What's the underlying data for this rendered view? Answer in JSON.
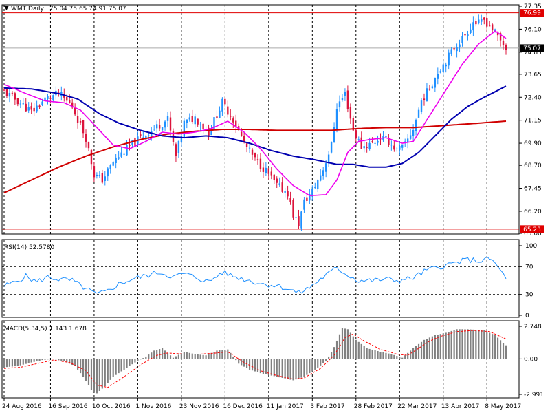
{
  "header": {
    "symbol": "WMT,Daily",
    "ohlc": "75.04 75.65 74.91 75.07"
  },
  "price_panel": {
    "ticks": [
      "77.35",
      "76.10",
      "74.85",
      "73.65",
      "72.40",
      "71.15",
      "69.90",
      "68.70",
      "67.45",
      "66.20",
      "65.00"
    ],
    "hline_high": "76.99",
    "hline_low": "65.23",
    "current": "75.07",
    "colors": {
      "bull": "#1e90ff",
      "bear": "#dc143c",
      "ma_fast": "#ee00ee",
      "ma_mid": "#0000b0",
      "ma_slow": "#d00000",
      "hline": "#e00000",
      "last": "#aaaaaa"
    }
  },
  "rsi_panel": {
    "title": "RSI(14) 52.5780",
    "ticks": [
      "100",
      "70",
      "30",
      "0"
    ],
    "line_color": "#1e90ff"
  },
  "macd_panel": {
    "title": "MACD(5,34,5) 1.143 1.678",
    "ticks": [
      "2.748",
      "0.00",
      "-2.991"
    ],
    "hist_color": "#808080",
    "signal_color": "#ff0000"
  },
  "x_axis": {
    "labels": [
      "24 Aug 2016",
      "16 Sep 2016",
      "10 Oct 2016",
      "1 Nov 2016",
      "23 Nov 2016",
      "16 Dec 2016",
      "11 Jan 2017",
      "3 Feb 2017",
      "28 Feb 2017",
      "22 Mar 2017",
      "13 Apr 2017",
      "8 May 2017"
    ]
  },
  "chart_data": {
    "type": "candlestick",
    "n_bars": 185,
    "ylim": [
      65.0,
      77.35
    ],
    "close_path": [
      [
        0,
        72.7
      ],
      [
        5,
        72.2
      ],
      [
        10,
        71.6
      ],
      [
        15,
        72.3
      ],
      [
        20,
        72.6
      ],
      [
        25,
        71.9
      ],
      [
        30,
        70.2
      ],
      [
        33,
        68.2
      ],
      [
        36,
        67.9
      ],
      [
        40,
        68.9
      ],
      [
        45,
        69.6
      ],
      [
        50,
        70.2
      ],
      [
        55,
        70.7
      ],
      [
        60,
        71.2
      ],
      [
        63,
        69.2
      ],
      [
        66,
        71.0
      ],
      [
        70,
        71.3
      ],
      [
        75,
        70.5
      ],
      [
        80,
        72.1
      ],
      [
        84,
        71.2
      ],
      [
        88,
        69.9
      ],
      [
        92,
        69.0
      ],
      [
        96,
        68.4
      ],
      [
        100,
        67.6
      ],
      [
        104,
        67.2
      ],
      [
        106,
        66.0
      ],
      [
        108,
        65.5
      ],
      [
        110,
        66.7
      ],
      [
        113,
        67.3
      ],
      [
        117,
        68.5
      ],
      [
        120,
        69.8
      ],
      [
        122,
        71.9
      ],
      [
        125,
        72.6
      ],
      [
        128,
        70.6
      ],
      [
        131,
        69.7
      ],
      [
        135,
        69.9
      ],
      [
        138,
        70.2
      ],
      [
        141,
        70.0
      ],
      [
        144,
        69.5
      ],
      [
        147,
        69.8
      ],
      [
        150,
        70.7
      ],
      [
        153,
        72.2
      ],
      [
        156,
        72.9
      ],
      [
        159,
        73.8
      ],
      [
        162,
        74.4
      ],
      [
        165,
        75.1
      ],
      [
        168,
        75.6
      ],
      [
        170,
        76.0
      ],
      [
        172,
        76.5
      ],
      [
        174,
        76.4
      ],
      [
        176,
        76.6
      ],
      [
        178,
        76.3
      ],
      [
        180,
        75.9
      ],
      [
        182,
        75.5
      ],
      [
        184,
        75.07
      ]
    ],
    "ma_fast": [
      [
        0,
        73.1
      ],
      [
        8,
        72.6
      ],
      [
        15,
        72.2
      ],
      [
        22,
        72.1
      ],
      [
        28,
        71.7
      ],
      [
        35,
        70.6
      ],
      [
        40,
        69.8
      ],
      [
        46,
        69.6
      ],
      [
        52,
        70.0
      ],
      [
        58,
        70.5
      ],
      [
        64,
        70.4
      ],
      [
        70,
        70.5
      ],
      [
        76,
        70.7
      ],
      [
        82,
        71.1
      ],
      [
        88,
        70.5
      ],
      [
        94,
        69.6
      ],
      [
        100,
        68.5
      ],
      [
        106,
        67.6
      ],
      [
        112,
        67.05
      ],
      [
        118,
        67.1
      ],
      [
        122,
        67.9
      ],
      [
        126,
        69.4
      ],
      [
        130,
        70.0
      ],
      [
        134,
        70.1
      ],
      [
        140,
        70.2
      ],
      [
        146,
        69.9
      ],
      [
        150,
        70.0
      ],
      [
        156,
        71.4
      ],
      [
        162,
        72.8
      ],
      [
        168,
        74.2
      ],
      [
        174,
        75.3
      ],
      [
        180,
        76.0
      ],
      [
        184,
        75.6
      ]
    ],
    "ma_mid": [
      [
        0,
        72.9
      ],
      [
        10,
        72.85
      ],
      [
        20,
        72.6
      ],
      [
        27,
        72.3
      ],
      [
        35,
        71.5
      ],
      [
        42,
        71.0
      ],
      [
        50,
        70.6
      ],
      [
        58,
        70.3
      ],
      [
        66,
        70.2
      ],
      [
        74,
        70.3
      ],
      [
        82,
        70.2
      ],
      [
        90,
        69.9
      ],
      [
        98,
        69.5
      ],
      [
        106,
        69.2
      ],
      [
        114,
        69.0
      ],
      [
        122,
        68.75
      ],
      [
        128,
        68.75
      ],
      [
        134,
        68.6
      ],
      [
        140,
        68.6
      ],
      [
        146,
        68.8
      ],
      [
        152,
        69.4
      ],
      [
        158,
        70.3
      ],
      [
        164,
        71.2
      ],
      [
        170,
        71.9
      ],
      [
        176,
        72.4
      ],
      [
        184,
        73.0
      ]
    ],
    "ma_slow": [
      [
        0,
        67.2
      ],
      [
        10,
        67.9
      ],
      [
        20,
        68.6
      ],
      [
        30,
        69.2
      ],
      [
        40,
        69.7
      ],
      [
        50,
        70.1
      ],
      [
        60,
        70.4
      ],
      [
        70,
        70.55
      ],
      [
        80,
        70.65
      ],
      [
        90,
        70.65
      ],
      [
        100,
        70.6
      ],
      [
        110,
        70.6
      ],
      [
        120,
        70.6
      ],
      [
        130,
        70.7
      ],
      [
        140,
        70.75
      ],
      [
        150,
        70.75
      ],
      [
        160,
        70.85
      ],
      [
        170,
        70.95
      ],
      [
        184,
        71.1
      ]
    ],
    "rsi": {
      "ylim": [
        0,
        100
      ],
      "levels": [
        70,
        30
      ],
      "path": [
        [
          0,
          42
        ],
        [
          4,
          48
        ],
        [
          8,
          56
        ],
        [
          12,
          48
        ],
        [
          16,
          55
        ],
        [
          20,
          52
        ],
        [
          25,
          50
        ],
        [
          30,
          38
        ],
        [
          34,
          30
        ],
        [
          38,
          35
        ],
        [
          42,
          45
        ],
        [
          47,
          52
        ],
        [
          52,
          57
        ],
        [
          57,
          62
        ],
        [
          62,
          55
        ],
        [
          66,
          60
        ],
        [
          70,
          55
        ],
        [
          75,
          48
        ],
        [
          80,
          62
        ],
        [
          85,
          55
        ],
        [
          90,
          50
        ],
        [
          95,
          45
        ],
        [
          100,
          43
        ],
        [
          104,
          38
        ],
        [
          108,
          32
        ],
        [
          112,
          40
        ],
        [
          117,
          55
        ],
        [
          122,
          68
        ],
        [
          126,
          58
        ],
        [
          130,
          50
        ],
        [
          135,
          50
        ],
        [
          140,
          52
        ],
        [
          145,
          50
        ],
        [
          150,
          54
        ],
        [
          155,
          65
        ],
        [
          160,
          70
        ],
        [
          165,
          75
        ],
        [
          170,
          80
        ],
        [
          175,
          78
        ],
        [
          178,
          82
        ],
        [
          181,
          70
        ],
        [
          184,
          52.58
        ]
      ]
    },
    "macd": {
      "ylim": [
        -2.991,
        2.748
      ],
      "hist": [
        [
          0,
          -0.7
        ],
        [
          5,
          -0.6
        ],
        [
          10,
          -0.3
        ],
        [
          14,
          -0.1
        ],
        [
          18,
          0.0
        ],
        [
          22,
          -0.2
        ],
        [
          26,
          -0.6
        ],
        [
          29,
          -1.5
        ],
        [
          32,
          -2.6
        ],
        [
          34,
          -2.9
        ],
        [
          37,
          -2.3
        ],
        [
          40,
          -1.5
        ],
        [
          44,
          -0.9
        ],
        [
          48,
          -0.3
        ],
        [
          52,
          0.2
        ],
        [
          55,
          0.7
        ],
        [
          58,
          0.9
        ],
        [
          62,
          0.1
        ],
        [
          66,
          0.6
        ],
        [
          70,
          0.4
        ],
        [
          74,
          0.3
        ],
        [
          78,
          0.7
        ],
        [
          82,
          0.8
        ],
        [
          86,
          -0.4
        ],
        [
          90,
          -0.9
        ],
        [
          94,
          -1.2
        ],
        [
          98,
          -1.4
        ],
        [
          102,
          -1.6
        ],
        [
          106,
          -1.8
        ],
        [
          110,
          -1.5
        ],
        [
          114,
          -0.9
        ],
        [
          118,
          -0.2
        ],
        [
          121,
          1.0
        ],
        [
          124,
          2.6
        ],
        [
          126,
          2.5
        ],
        [
          129,
          1.6
        ],
        [
          133,
          0.9
        ],
        [
          138,
          0.6
        ],
        [
          142,
          0.4
        ],
        [
          146,
          0.1
        ],
        [
          150,
          0.9
        ],
        [
          154,
          1.6
        ],
        [
          158,
          2.0
        ],
        [
          162,
          2.2
        ],
        [
          166,
          2.5
        ],
        [
          170,
          2.5
        ],
        [
          176,
          2.4
        ],
        [
          180,
          2.0
        ],
        [
          184,
          1.143
        ]
      ],
      "signal": [
        [
          0,
          -0.8
        ],
        [
          6,
          -0.7
        ],
        [
          12,
          -0.4
        ],
        [
          18,
          -0.1
        ],
        [
          24,
          -0.3
        ],
        [
          30,
          -1.0
        ],
        [
          34,
          -2.2
        ],
        [
          38,
          -2.4
        ],
        [
          44,
          -1.5
        ],
        [
          50,
          -0.5
        ],
        [
          56,
          0.3
        ],
        [
          60,
          0.5
        ],
        [
          66,
          0.4
        ],
        [
          72,
          0.4
        ],
        [
          78,
          0.5
        ],
        [
          82,
          0.6
        ],
        [
          88,
          -0.3
        ],
        [
          94,
          -1.0
        ],
        [
          100,
          -1.4
        ],
        [
          106,
          -1.7
        ],
        [
          110,
          -1.6
        ],
        [
          116,
          -0.8
        ],
        [
          121,
          0.3
        ],
        [
          125,
          1.8
        ],
        [
          128,
          2.1
        ],
        [
          132,
          1.5
        ],
        [
          138,
          0.8
        ],
        [
          144,
          0.4
        ],
        [
          148,
          0.3
        ],
        [
          152,
          0.9
        ],
        [
          156,
          1.5
        ],
        [
          160,
          1.9
        ],
        [
          166,
          2.3
        ],
        [
          172,
          2.4
        ],
        [
          178,
          2.3
        ],
        [
          184,
          1.678
        ]
      ]
    },
    "grid_x_dates": [
      "24 Aug 2016",
      "16 Sep 2016",
      "10 Oct 2016",
      "1 Nov 2016",
      "23 Nov 2016",
      "16 Dec 2016",
      "11 Jan 2017",
      "3 Feb 2017",
      "28 Feb 2017",
      "22 Mar 2017",
      "13 Apr 2017",
      "8 May 2017"
    ],
    "grid_x_bars": [
      0,
      17,
      33,
      49,
      65,
      81,
      97,
      113,
      129,
      145,
      161,
      177
    ]
  }
}
